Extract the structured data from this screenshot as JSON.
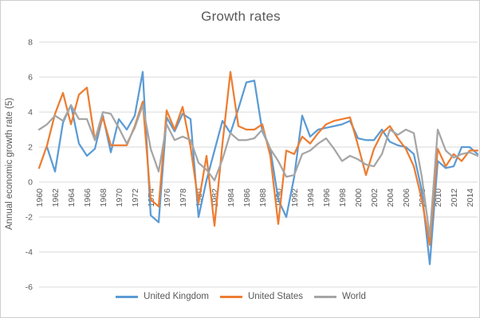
{
  "chart": {
    "title": "Growth rates",
    "y_axis_title": "Annual economic growth rate (5)"
  },
  "chart_data": {
    "type": "line",
    "title": "Growth rates",
    "xlabel": "",
    "ylabel": "Annual economic growth rate (5)",
    "ylim": [
      -6,
      8
    ],
    "ytick_step": 2,
    "ytick_labels": [
      "8",
      "6",
      "4",
      "2",
      "0",
      "-2",
      "-4",
      "-6"
    ],
    "x_start": 1960,
    "x_end": 2015,
    "x_tick_labels": [
      "1960",
      "1962",
      "1964",
      "1966",
      "1968",
      "1970",
      "1972",
      "1974",
      "1976",
      "1978",
      "1980",
      "1982",
      "1984",
      "1986",
      "1988",
      "1990",
      "1992",
      "1994",
      "1996",
      "1998",
      "2000",
      "2002",
      "2004",
      "2006",
      "2008",
      "2010",
      "2012",
      "2014"
    ],
    "grid": true,
    "gridline_color": "#d9d9d9",
    "text_color": "#595959",
    "legend_position": "bottom",
    "series": [
      {
        "name": "United Kingdom",
        "color": "#5b9bd5",
        "start_year": 1961,
        "values": [
          2.0,
          0.6,
          3.4,
          4.4,
          2.2,
          1.5,
          1.9,
          3.8,
          1.7,
          3.6,
          3.0,
          3.8,
          6.3,
          -1.9,
          -2.3,
          3.7,
          2.9,
          3.9,
          3.6,
          -2.0,
          0.1,
          1.8,
          3.5,
          2.8,
          4.2,
          5.7,
          5.8,
          2.9,
          1.9,
          -1.0,
          -2.0,
          0.3,
          3.8,
          2.6,
          3.0,
          3.1,
          3.2,
          3.3,
          3.5,
          2.5,
          2.4,
          2.4,
          3.0,
          2.3,
          2.1,
          2.0,
          1.6,
          -0.5,
          -4.7,
          1.2,
          0.8,
          0.9,
          2.0,
          2.0,
          1.6
        ]
      },
      {
        "name": "United States",
        "color": "#ed7d31",
        "start_year": 1960,
        "values": [
          0.8,
          2.1,
          3.9,
          5.1,
          3.3,
          5.0,
          5.4,
          2.4,
          3.7,
          2.1,
          2.1,
          2.1,
          3.2,
          4.6,
          -1.0,
          -1.4,
          4.1,
          3.0,
          4.3,
          2.0,
          -1.2,
          1.5,
          -2.5,
          2.2,
          6.3,
          3.2,
          3.0,
          3.0,
          3.3,
          1.5,
          -2.4,
          1.8,
          1.6,
          2.6,
          2.2,
          2.8,
          3.3,
          3.5,
          3.6,
          3.7,
          2.1,
          0.4,
          1.9,
          2.8,
          3.2,
          2.5,
          1.9,
          0.9,
          -1.0,
          -3.6,
          1.9,
          0.9,
          1.6,
          1.2,
          1.8,
          1.8
        ]
      },
      {
        "name": "World",
        "color": "#a5a5a5",
        "start_year": 1960,
        "values": [
          3.0,
          3.3,
          3.8,
          3.5,
          4.4,
          3.6,
          3.6,
          2.4,
          4.0,
          3.9,
          3.1,
          2.2,
          3.1,
          4.4,
          1.9,
          0.6,
          3.3,
          2.4,
          2.6,
          2.4,
          1.1,
          0.7,
          0.1,
          1.3,
          2.8,
          2.4,
          2.4,
          2.5,
          3.0,
          1.9,
          1.2,
          0.3,
          0.4,
          1.6,
          1.8,
          2.2,
          2.5,
          1.9,
          1.2,
          1.5,
          1.3,
          1.0,
          0.9,
          1.6,
          3.0,
          2.7,
          3.0,
          2.8,
          0.3,
          -3.1,
          3.0,
          1.8,
          1.4,
          1.6,
          1.7,
          1.5
        ]
      }
    ]
  }
}
